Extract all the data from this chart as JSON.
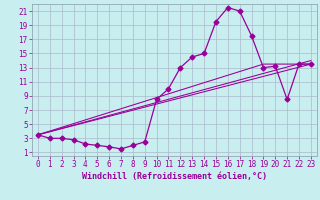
{
  "xlabel": "Windchill (Refroidissement éolien,°C)",
  "bg_color": "#c8eef0",
  "line_color": "#990099",
  "marker": "D",
  "xlim": [
    -0.5,
    23.5
  ],
  "ylim": [
    0.5,
    22
  ],
  "xticks": [
    0,
    1,
    2,
    3,
    4,
    5,
    6,
    7,
    8,
    9,
    10,
    11,
    12,
    13,
    14,
    15,
    16,
    17,
    18,
    19,
    20,
    21,
    22,
    23
  ],
  "yticks": [
    1,
    3,
    5,
    7,
    9,
    11,
    13,
    15,
    17,
    19,
    21
  ],
  "grid_color": "#aabbcc",
  "line1_x": [
    0,
    1,
    2,
    3,
    4,
    5,
    6,
    7,
    8,
    9,
    10,
    11,
    12,
    13,
    14,
    15,
    16,
    17,
    18,
    19,
    20,
    21,
    22,
    23
  ],
  "line1_y": [
    3.5,
    3.0,
    3.0,
    2.8,
    2.2,
    2.0,
    1.8,
    1.5,
    2.0,
    2.5,
    8.5,
    10.0,
    13.0,
    14.5,
    15.0,
    19.5,
    21.5,
    21.0,
    17.5,
    13.0,
    13.2,
    8.5,
    13.5,
    13.5
  ],
  "line2_x": [
    0,
    23
  ],
  "line2_y": [
    3.5,
    13.5
  ],
  "line3_x": [
    0,
    23
  ],
  "line3_y": [
    3.5,
    14.0
  ],
  "line4_x": [
    0,
    19,
    23
  ],
  "line4_y": [
    3.5,
    13.5,
    13.5
  ],
  "markersize": 2.5,
  "linewidth": 0.9,
  "tick_fontsize": 5.5,
  "xlabel_fontsize": 6.0
}
